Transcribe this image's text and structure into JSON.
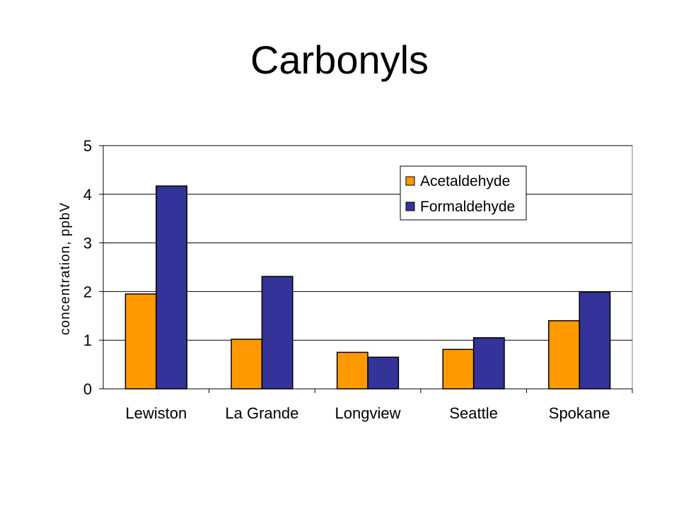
{
  "slide": {
    "title": "Carbonyls"
  },
  "chart_data": {
    "type": "bar",
    "title": "Carbonyls",
    "xlabel": "",
    "ylabel": "concentration, ppbV",
    "categories": [
      "Lewiston",
      "La Grande",
      "Longview",
      "Seattle",
      "Spokane"
    ],
    "series": [
      {
        "name": "Acetaldehyde",
        "color": "#FF9900",
        "values": [
          1.95,
          1.02,
          0.75,
          0.81,
          1.4
        ]
      },
      {
        "name": "Formaldehyde",
        "color": "#333399",
        "values": [
          4.17,
          2.31,
          0.65,
          1.05,
          1.99
        ]
      }
    ],
    "ylim": [
      0,
      5
    ],
    "yticks": [
      0,
      1,
      2,
      3,
      4,
      5
    ],
    "grid": true,
    "legend": "top-right"
  }
}
